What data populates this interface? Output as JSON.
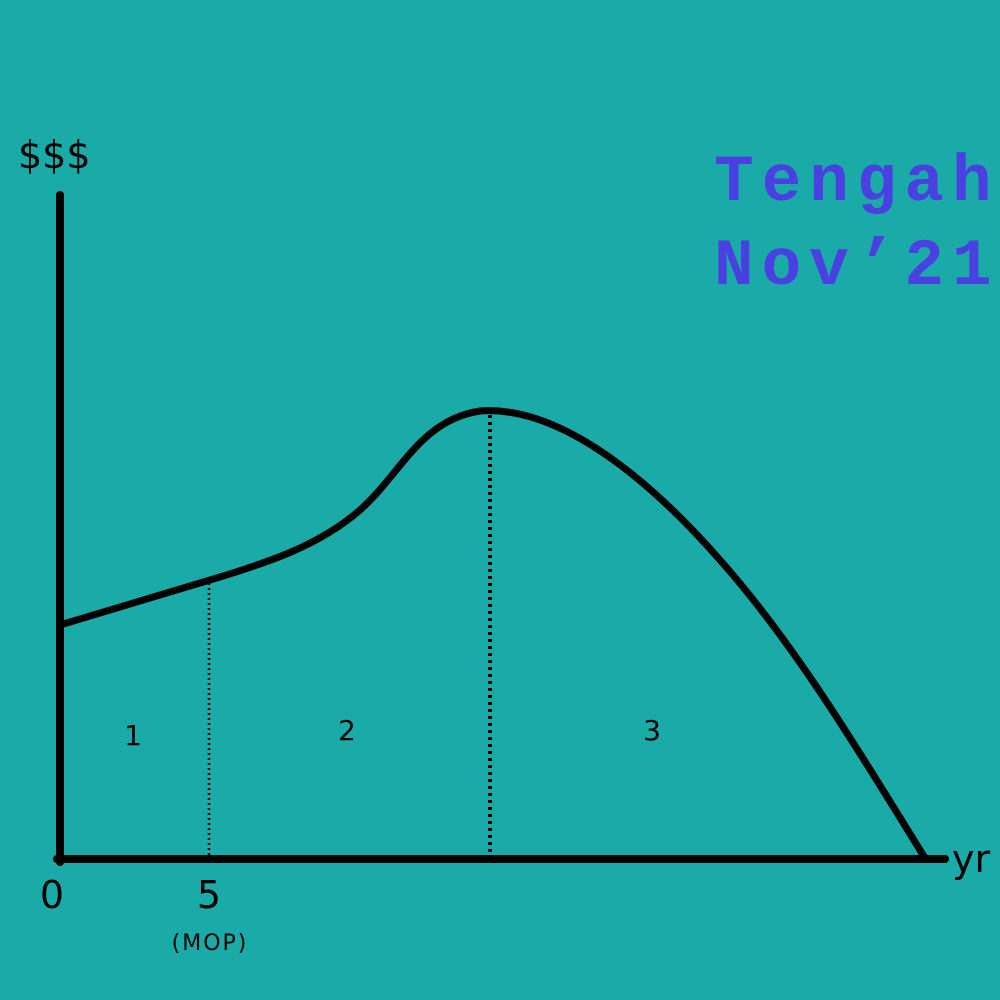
{
  "axes": {
    "y_label": "$$$",
    "x_label": "yr",
    "origin": "0",
    "tick": "5",
    "tick_note": "(MOP)"
  },
  "regions": [
    "1",
    "2",
    "3"
  ],
  "watermark": {
    "line1": "Tengah",
    "line2": "Nov’21"
  }
}
